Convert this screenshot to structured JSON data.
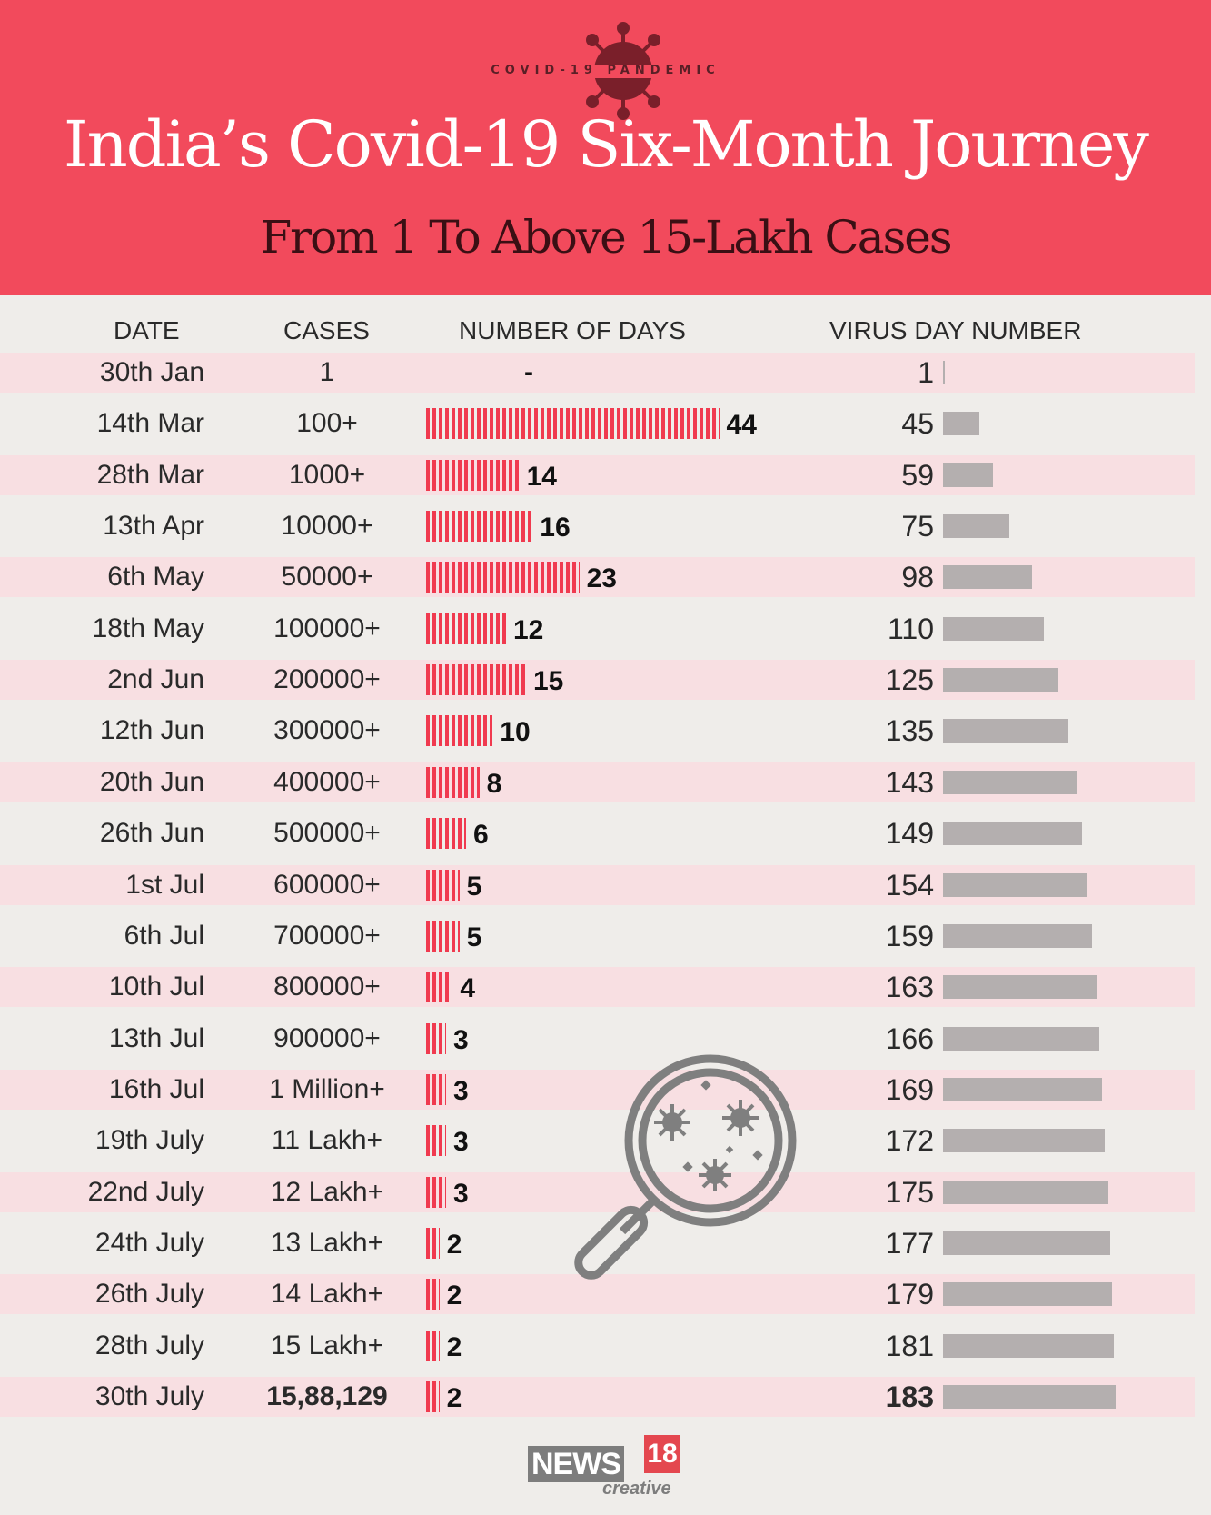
{
  "header": {
    "badge": "COVID-19 PANDEMIC",
    "title": "India’s Covid-19 Six-Month Journey",
    "subtitle": "From 1 To Above 15-Lakh Cases"
  },
  "columns": {
    "date": "DATE",
    "cases": "CASES",
    "days": "NUMBER OF DAYS",
    "day_number": "VIRUS DAY NUMBER"
  },
  "colors": {
    "header_bg": "#f24a5c",
    "days_bar": "#f03a4f",
    "day_number_bar": "#b4afaf",
    "stripe": "#f9dce0"
  },
  "icons": [
    "virus-icon",
    "magnifier-germs-icon"
  ],
  "logo": {
    "news": "NEWS",
    "num": "18",
    "sub": "creative"
  },
  "chart_data": {
    "type": "table",
    "rows": [
      {
        "date": "30th Jan",
        "cases": "1",
        "days": null,
        "days_label": "-",
        "day_number": 1
      },
      {
        "date": "14th Mar",
        "cases": "100+",
        "days": 44,
        "days_label": "44",
        "day_number": 45
      },
      {
        "date": "28th Mar",
        "cases": "1000+",
        "days": 14,
        "days_label": "14",
        "day_number": 59
      },
      {
        "date": "13th Apr",
        "cases": "10000+",
        "days": 16,
        "days_label": "16",
        "day_number": 75
      },
      {
        "date": "6th May",
        "cases": "50000+",
        "days": 23,
        "days_label": "23",
        "day_number": 98
      },
      {
        "date": "18th May",
        "cases": "100000+",
        "days": 12,
        "days_label": "12",
        "day_number": 110
      },
      {
        "date": "2nd Jun",
        "cases": "200000+",
        "days": 15,
        "days_label": "15",
        "day_number": 125
      },
      {
        "date": "12th Jun",
        "cases": "300000+",
        "days": 10,
        "days_label": "10",
        "day_number": 135
      },
      {
        "date": "20th Jun",
        "cases": "400000+",
        "days": 8,
        "days_label": "8",
        "day_number": 143
      },
      {
        "date": "26th Jun",
        "cases": "500000+",
        "days": 6,
        "days_label": "6",
        "day_number": 149
      },
      {
        "date": "1st Jul",
        "cases": "600000+",
        "days": 5,
        "days_label": "5",
        "day_number": 154
      },
      {
        "date": "6th Jul",
        "cases": "700000+",
        "days": 5,
        "days_label": "5",
        "day_number": 159
      },
      {
        "date": "10th Jul",
        "cases": "800000+",
        "days": 4,
        "days_label": "4",
        "day_number": 163
      },
      {
        "date": "13th Jul",
        "cases": "900000+",
        "days": 3,
        "days_label": "3",
        "day_number": 166
      },
      {
        "date": "16th Jul",
        "cases": "1 Million+",
        "days": 3,
        "days_label": "3",
        "day_number": 169
      },
      {
        "date": "19th July",
        "cases": "11 Lakh+",
        "days": 3,
        "days_label": "3",
        "day_number": 172
      },
      {
        "date": "22nd July",
        "cases": "12 Lakh+",
        "days": 3,
        "days_label": "3",
        "day_number": 175
      },
      {
        "date": "24th July",
        "cases": "13 Lakh+",
        "days": 2,
        "days_label": "2",
        "day_number": 177
      },
      {
        "date": "26th July",
        "cases": "14 Lakh+",
        "days": 2,
        "days_label": "2",
        "day_number": 179
      },
      {
        "date": "28th July",
        "cases": "15 Lakh+",
        "days": 2,
        "days_label": "2",
        "day_number": 181
      },
      {
        "date": "30th July",
        "cases": "15,88,129",
        "days": 2,
        "days_label": "2",
        "day_number": 183,
        "emphasis": true
      }
    ]
  }
}
